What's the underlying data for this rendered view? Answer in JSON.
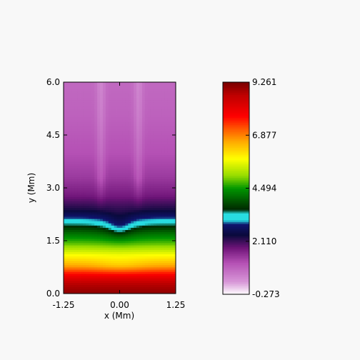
{
  "chart_data": {
    "type": "heatmap",
    "xlabel": "x (Mm)",
    "ylabel": "y (Mm)",
    "xlim": [
      -1.25,
      1.25
    ],
    "ylim": [
      0.0,
      6.0
    ],
    "xticks": [
      "-1.25",
      "0.00",
      "1.25"
    ],
    "xtick_values": [
      -1.25,
      0.0,
      1.25
    ],
    "yticks": [
      "0.0",
      "1.5",
      "3.0",
      "4.5",
      "6.0"
    ],
    "ytick_values": [
      0.0,
      1.5,
      3.0,
      4.5,
      6.0
    ],
    "colorbar": {
      "range": [
        -0.273,
        9.261
      ],
      "ticks": [
        "9.261",
        "6.877",
        "4.494",
        "2.110",
        "-0.273"
      ],
      "tick_values": [
        9.261,
        6.877,
        4.494,
        2.11,
        -0.273
      ],
      "colormap": "prism-like (white-purple-navy-cyan-green-yellow-orange-red)"
    },
    "field_profile": {
      "y": [
        0.0,
        0.3,
        0.5,
        0.8,
        1.1,
        1.4,
        1.7,
        1.95,
        2.1,
        2.4,
        2.8,
        3.3,
        4.0,
        5.0,
        6.0
      ],
      "value": [
        9.1,
        8.7,
        8.0,
        6.6,
        5.8,
        4.9,
        4.2,
        3.5,
        3.05,
        2.3,
        1.75,
        1.4,
        1.15,
        0.95,
        0.85
      ]
    },
    "structures": [
      {
        "x": -0.42,
        "width": 0.14,
        "value": 1.6
      },
      {
        "x": 0.42,
        "width": 0.14,
        "value": 1.6
      }
    ]
  }
}
